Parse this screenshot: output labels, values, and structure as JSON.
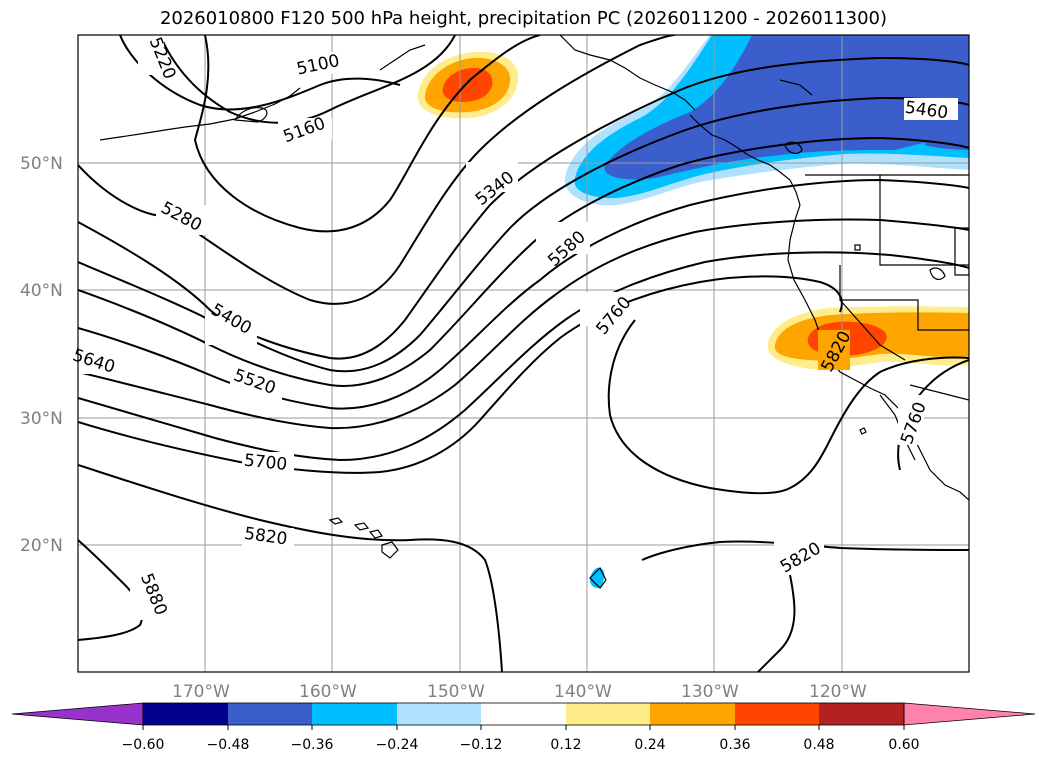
{
  "title": "2026010800 F120 500 hPa height, precipitation PC (2026011200 - 2026011300)",
  "lat_labels": [
    "50°N",
    "40°N",
    "30°N",
    "20°N"
  ],
  "lon_labels": [
    "170°W",
    "160°W",
    "150°W",
    "140°W",
    "130°W",
    "120°W"
  ],
  "contour_labels": [
    "5100",
    "5160",
    "5220",
    "5280",
    "5340",
    "5400",
    "5460",
    "5520",
    "5580",
    "5640",
    "5700",
    "5760",
    "5760",
    "5820",
    "5820",
    "5820",
    "5880"
  ],
  "colorbar": {
    "ticks": [
      "−0.60",
      "−0.48",
      "−0.36",
      "−0.24",
      "−0.12",
      "0.12",
      "0.24",
      "0.36",
      "0.48",
      "0.60"
    ],
    "colors": [
      "#9932cc",
      "#00008b",
      "#3a5fcd",
      "#00bfff",
      "#b0e2ff",
      "#ffffff",
      "#ffec8b",
      "#ffa500",
      "#ff4500",
      "#b22222",
      "#ff82ab"
    ]
  },
  "precip_colors": {
    "light_yellow": "#ffec8b",
    "orange": "#ffa500",
    "red_orange": "#ff4500",
    "light_blue": "#b0e2ff",
    "deep_sky": "#00bfff",
    "royal_blue": "#3a5fcd"
  }
}
